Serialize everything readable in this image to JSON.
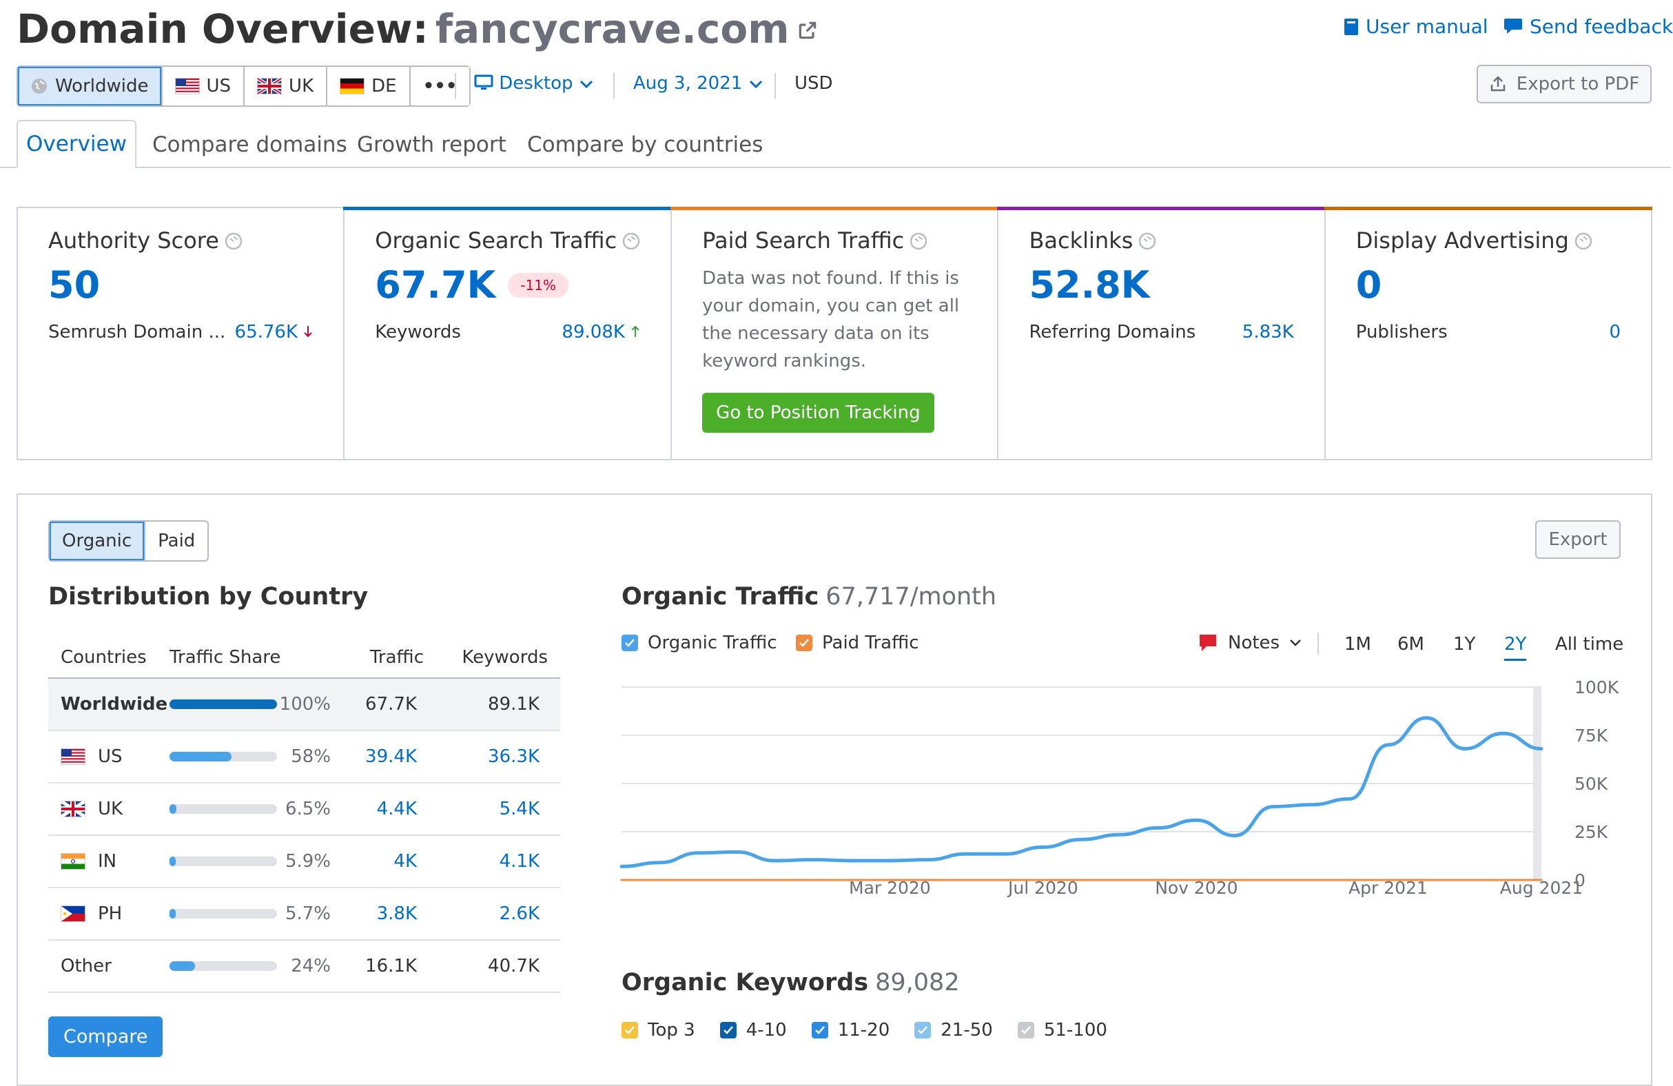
{
  "header": {
    "title": "Domain Overview:",
    "domain": "fancycrave.com",
    "user_manual": "User manual",
    "send_feedback": "Send feedback"
  },
  "databases": [
    {
      "label": "Worldwide",
      "icon": "globe-icon",
      "active": true
    },
    {
      "label": "US",
      "icon": "flag-us-icon"
    },
    {
      "label": "UK",
      "icon": "flag-uk-icon"
    },
    {
      "label": "DE",
      "icon": "flag-de-icon"
    },
    {
      "label": "•••",
      "icon": "more-icon"
    }
  ],
  "filters": {
    "device": "Desktop",
    "date": "Aug 3, 2021",
    "currency": "USD"
  },
  "export_pdf": "Export to PDF",
  "tabs": [
    "Overview",
    "Compare domains",
    "Growth report",
    "Compare by countries"
  ],
  "cards": {
    "authority": {
      "title": "Authority Score",
      "value": "50",
      "label": "Semrush Domain ...",
      "sub_value": "65.76K",
      "trend": "down"
    },
    "organic": {
      "title": "Organic Search Traffic",
      "value": "67.7K",
      "badge": "-11%",
      "label": "Keywords",
      "sub_value": "89.08K",
      "trend": "up",
      "accent": "#0a6ebd"
    },
    "paid": {
      "title": "Paid Search Traffic",
      "message": "Data was not found. If this is your domain, you can get all the necessary data on its keyword rankings.",
      "button": "Go to Position Tracking",
      "accent": "#f47a20"
    },
    "backlinks": {
      "title": "Backlinks",
      "value": "52.8K",
      "label": "Referring Domains",
      "sub_value": "5.83K",
      "accent": "#8b1ea5"
    },
    "display": {
      "title": "Display Advertising",
      "value": "0",
      "label": "Publishers",
      "sub_value": "0",
      "accent": "#c46d00"
    }
  },
  "toggle": {
    "organic": "Organic",
    "paid": "Paid"
  },
  "export": "Export",
  "distribution": {
    "title": "Distribution by Country",
    "columns": [
      "Countries",
      "Traffic Share",
      "Traffic",
      "Keywords"
    ],
    "rows": [
      {
        "country": "Worldwide",
        "icon": "",
        "share": "100%",
        "share_value": 1.0,
        "traffic": "67.7K",
        "keywords": "89.1K",
        "link": false
      },
      {
        "country": "US",
        "icon": "flag-us-icon",
        "share": "58%",
        "share_value": 0.58,
        "traffic": "39.4K",
        "keywords": "36.3K",
        "link": true
      },
      {
        "country": "UK",
        "icon": "flag-uk-icon",
        "share": "6.5%",
        "share_value": 0.065,
        "traffic": "4.4K",
        "keywords": "5.4K",
        "link": true
      },
      {
        "country": "IN",
        "icon": "flag-in-icon",
        "share": "5.9%",
        "share_value": 0.059,
        "traffic": "4K",
        "keywords": "4.1K",
        "link": true
      },
      {
        "country": "PH",
        "icon": "flag-ph-icon",
        "share": "5.7%",
        "share_value": 0.057,
        "traffic": "3.8K",
        "keywords": "2.6K",
        "link": true
      },
      {
        "country": "Other",
        "icon": "",
        "share": "24%",
        "share_value": 0.24,
        "traffic": "16.1K",
        "keywords": "40.7K",
        "link": false
      }
    ],
    "compare_button": "Compare"
  },
  "traffic_chart": {
    "title": "Organic Traffic",
    "subtitle": "67,717/month",
    "legend": [
      "Organic Traffic",
      "Paid Traffic"
    ],
    "notes": "Notes",
    "ranges": [
      "1M",
      "6M",
      "1Y",
      "2Y",
      "All time"
    ],
    "active_range": "2Y"
  },
  "keywords_section": {
    "title": "Organic Keywords",
    "count": "89,082",
    "legend": [
      "Top 3",
      "4-10",
      "11-20",
      "21-50",
      "51-100"
    ]
  },
  "chart_data": {
    "type": "line",
    "title": "Organic Traffic",
    "x_ticks": [
      "Mar 2020",
      "Jul 2020",
      "Nov 2020",
      "Apr 2021",
      "Aug 2021"
    ],
    "y_ticks": [
      "100K",
      "75K",
      "50K",
      "25K",
      "0"
    ],
    "ylim": [
      0,
      100000
    ],
    "xlim": [
      "2019-08",
      "2021-08"
    ],
    "series": [
      {
        "name": "Organic Traffic",
        "color": "#4aa3e8",
        "x": [
          "2019-08",
          "2019-09",
          "2019-10",
          "2019-11",
          "2019-12",
          "2020-01",
          "2020-02",
          "2020-03",
          "2020-04",
          "2020-05",
          "2020-06",
          "2020-07",
          "2020-08",
          "2020-09",
          "2020-10",
          "2020-11",
          "2020-12",
          "2021-01",
          "2021-02",
          "2021-03",
          "2021-04",
          "2021-05",
          "2021-06",
          "2021-07",
          "2021-08"
        ],
        "values": [
          7000,
          9000,
          14000,
          14500,
          10000,
          10500,
          10000,
          10000,
          10500,
          13500,
          13500,
          17000,
          21000,
          23500,
          27000,
          31000,
          23000,
          38000,
          39000,
          42000,
          70000,
          84000,
          68000,
          76000,
          68000
        ]
      },
      {
        "name": "Paid Traffic",
        "color": "#f08a3c",
        "x": [
          "2019-08",
          "2021-08"
        ],
        "values": [
          0,
          0
        ]
      }
    ],
    "grid": true
  }
}
